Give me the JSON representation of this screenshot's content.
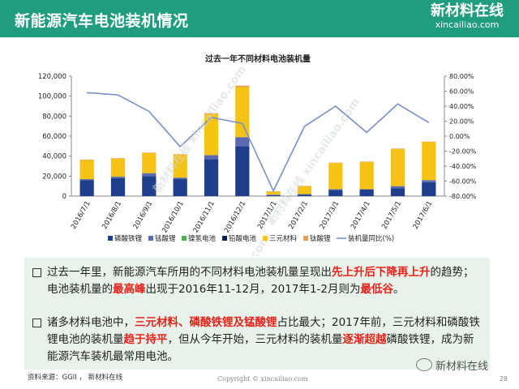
{
  "header": {
    "title": "新能源汽车电池装机情况"
  },
  "logo": {
    "cn": "新材料在线",
    "url": "xincailiao.com"
  },
  "watermark": "新材料在线 xincailiao.com",
  "chart_data": {
    "type": "bar",
    "stacked": true,
    "title": "过去一年不同材料电池装机量",
    "categories": [
      "2016/7/1",
      "2016/8/1",
      "2016/9/1",
      "2016/10/1",
      "2016/11/1",
      "2016/12/1",
      "2017/1/1",
      "2017/2/1",
      "2017/3/1",
      "2017/4/1",
      "2017/5/1",
      "2017/6/1"
    ],
    "series": [
      {
        "name": "磷酸铁锂",
        "color": "#1f3f8c",
        "values": [
          16000,
          18000,
          20000,
          17000,
          37000,
          50000,
          1000,
          1500,
          6000,
          6500,
          8000,
          14000
        ]
      },
      {
        "name": "锰酸锂",
        "color": "#5b6ab0",
        "values": [
          1000,
          1500,
          3000,
          1500,
          4000,
          9000,
          500,
          500,
          1000,
          500,
          2000,
          2000
        ]
      },
      {
        "name": "镍氢电池",
        "color": "#4caf50",
        "values": [
          0,
          0,
          0,
          0,
          0,
          0,
          0,
          0,
          0,
          0,
          0,
          0
        ]
      },
      {
        "name": "铅酸电池",
        "color": "#0d1f5c",
        "values": [
          0,
          0,
          0,
          0,
          0,
          0,
          0,
          0,
          0,
          0,
          0,
          0
        ]
      },
      {
        "name": "三元材料",
        "color": "#f5c314",
        "values": [
          19000,
          18000,
          20000,
          23000,
          41000,
          50000,
          3000,
          8000,
          26000,
          27000,
          37000,
          38000
        ]
      },
      {
        "name": "钛酸锂",
        "color": "#e39f4a",
        "values": [
          500,
          500,
          500,
          500,
          1000,
          1500,
          200,
          200,
          500,
          500,
          500,
          500
        ]
      }
    ],
    "line_series": {
      "name": "装机量同比(%)",
      "color": "#7a8fc8",
      "axis": "right",
      "values": [
        58,
        55,
        33,
        -14,
        25,
        17,
        -73,
        13,
        40,
        5,
        43,
        18
      ]
    },
    "y_left": {
      "min": 0,
      "max": 120000,
      "step": 20000,
      "ticks": [
        "0",
        "20,000",
        "40,000",
        "60,000",
        "80,000",
        "100,000",
        "120,000"
      ]
    },
    "y_right": {
      "min": -80,
      "max": 80,
      "step": 20,
      "ticks": [
        "-80.00%",
        "-60.00%",
        "-40.00%",
        "-20.00%",
        "0.00%",
        "20.00%",
        "40.00%",
        "60.00%",
        "80.00%"
      ]
    },
    "legend": "bottom"
  },
  "text": {
    "p1": [
      {
        "t": "过去一年里，新能源汽车所用的不同材料电池装机量呈现出",
        "h": false
      },
      {
        "t": "先上升后下降再上升",
        "h": true
      },
      {
        "t": "的趋势；电池装机量的",
        "h": false
      },
      {
        "t": "最高峰",
        "h": true
      },
      {
        "t": "出现于2016年11-12月，2017年1-2月则为",
        "h": false
      },
      {
        "t": "最低谷",
        "h": true
      },
      {
        "t": "。",
        "h": false
      }
    ],
    "p2": [
      {
        "t": "诸多材料电池中，",
        "h": false
      },
      {
        "t": "三元材料、磷酸铁锂及锰酸锂",
        "h": true
      },
      {
        "t": "占比最大；2017年前，三元材料和磷酸铁锂电池的装机量",
        "h": false
      },
      {
        "t": "趋于持平",
        "h": true
      },
      {
        "t": "，但从今年开始，三元材料的装机量",
        "h": false
      },
      {
        "t": "逐渐超越",
        "h": true
      },
      {
        "t": "磷酸铁锂，成为新能源汽车装机最常用电池。",
        "h": false
      }
    ]
  },
  "footer": {
    "source": "资料来源：GGII ， 新材料在线",
    "copyright": "Copyright © xincailiao.com",
    "wechat": "新材料在线",
    "page": "28"
  }
}
